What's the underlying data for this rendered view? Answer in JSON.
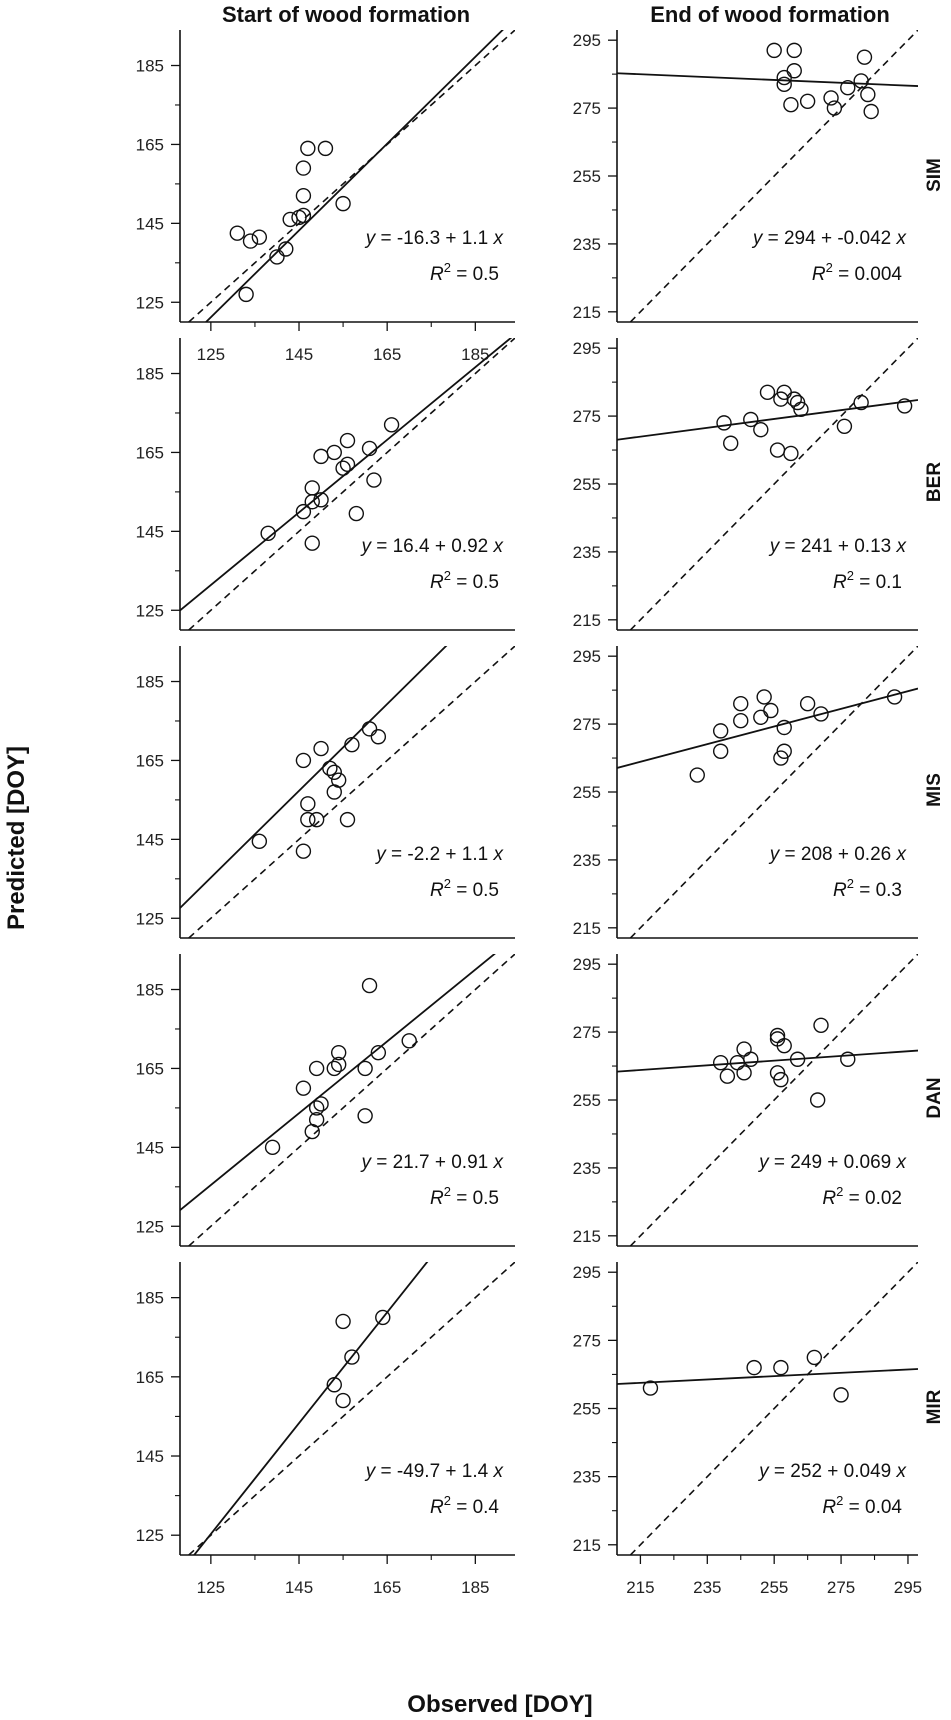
{
  "figure": {
    "column_titles": [
      "Start of wood formation",
      "End of wood formation"
    ],
    "xlabel": "Observed [DOY]",
    "ylabel": "Predicted [DOY]",
    "row_labels": [
      "SIM",
      "BER",
      "MIS",
      "DAN",
      "MIR"
    ],
    "colors": {
      "ink": "#111111",
      "background": "#ffffff"
    }
  },
  "chart_data": [
    {
      "type": "scatter",
      "column": "Start of wood formation",
      "site": "SIM",
      "xlim": [
        118,
        194
      ],
      "ylim": [
        120,
        194
      ],
      "xticks": [
        "125",
        "145",
        "165",
        "185"
      ],
      "yticks": [
        "125",
        "145",
        "165",
        "185"
      ],
      "fit": {
        "intercept": -16.3,
        "slope": 1.1
      },
      "equation": {
        "y": "y",
        "rhs": " = -16.3 + 1.1 ",
        "x": "x",
        "r": "R",
        "sup": "2",
        "r2": " = 0.5"
      },
      "points": [
        {
          "x": 131,
          "y": 142.5
        },
        {
          "x": 134,
          "y": 140.5
        },
        {
          "x": 136,
          "y": 141.5
        },
        {
          "x": 140,
          "y": 136.5
        },
        {
          "x": 142,
          "y": 138.5
        },
        {
          "x": 143,
          "y": 146
        },
        {
          "x": 145,
          "y": 146.5
        },
        {
          "x": 146,
          "y": 147
        },
        {
          "x": 146,
          "y": 152
        },
        {
          "x": 146,
          "y": 159
        },
        {
          "x": 147,
          "y": 164
        },
        {
          "x": 151,
          "y": 164
        },
        {
          "x": 155,
          "y": 150
        },
        {
          "x": 133,
          "y": 127
        }
      ]
    },
    {
      "type": "scatter",
      "column": "End of wood formation",
      "site": "SIM",
      "xlim": [
        208,
        298
      ],
      "ylim": [
        212,
        298
      ],
      "xticks": [],
      "yticks": [
        "215",
        "235",
        "255",
        "275",
        "295"
      ],
      "fit": {
        "intercept": 294,
        "slope": -0.042
      },
      "equation": {
        "y": "y",
        "rhs": " = 294 + -0.042 ",
        "x": "x",
        "r": "R",
        "sup": "2",
        "r2": " = 0.004"
      },
      "points": [
        {
          "x": 255,
          "y": 292
        },
        {
          "x": 261,
          "y": 292
        },
        {
          "x": 258,
          "y": 284
        },
        {
          "x": 258,
          "y": 282
        },
        {
          "x": 261,
          "y": 286
        },
        {
          "x": 260,
          "y": 276
        },
        {
          "x": 265,
          "y": 277
        },
        {
          "x": 272,
          "y": 278
        },
        {
          "x": 273,
          "y": 275
        },
        {
          "x": 277,
          "y": 281
        },
        {
          "x": 281,
          "y": 283
        },
        {
          "x": 282,
          "y": 290
        },
        {
          "x": 283,
          "y": 279
        },
        {
          "x": 284,
          "y": 274
        }
      ]
    },
    {
      "type": "scatter",
      "column": "Start of wood formation",
      "site": "BER",
      "xlim": [
        118,
        194
      ],
      "ylim": [
        120,
        194
      ],
      "xticks": [],
      "yticks": [
        "125",
        "145",
        "165",
        "185"
      ],
      "fit": {
        "intercept": 16.4,
        "slope": 0.92
      },
      "equation": {
        "y": "y",
        "rhs": " = 16.4 + 0.92 ",
        "x": "x",
        "r": "R",
        "sup": "2",
        "r2": " = 0.5"
      },
      "points": [
        {
          "x": 138,
          "y": 144.5
        },
        {
          "x": 146,
          "y": 150
        },
        {
          "x": 148,
          "y": 142
        },
        {
          "x": 148,
          "y": 152.5
        },
        {
          "x": 148,
          "y": 156
        },
        {
          "x": 150,
          "y": 153
        },
        {
          "x": 150,
          "y": 164
        },
        {
          "x": 153,
          "y": 165
        },
        {
          "x": 155,
          "y": 161
        },
        {
          "x": 156,
          "y": 162
        },
        {
          "x": 156,
          "y": 168
        },
        {
          "x": 158,
          "y": 149.5
        },
        {
          "x": 161,
          "y": 166
        },
        {
          "x": 162,
          "y": 158
        },
        {
          "x": 166,
          "y": 172
        }
      ]
    },
    {
      "type": "scatter",
      "column": "End of wood formation",
      "site": "BER",
      "xlim": [
        208,
        298
      ],
      "ylim": [
        212,
        298
      ],
      "xticks": [],
      "yticks": [
        "215",
        "235",
        "255",
        "275",
        "295"
      ],
      "fit": {
        "intercept": 241,
        "slope": 0.13
      },
      "equation": {
        "y": "y",
        "rhs": " = 241 + 0.13 ",
        "x": "x",
        "r": "R",
        "sup": "2",
        "r2": " = 0.1"
      },
      "points": [
        {
          "x": 240,
          "y": 273
        },
        {
          "x": 242,
          "y": 267
        },
        {
          "x": 248,
          "y": 274
        },
        {
          "x": 251,
          "y": 271
        },
        {
          "x": 253,
          "y": 282
        },
        {
          "x": 256,
          "y": 265
        },
        {
          "x": 257,
          "y": 280
        },
        {
          "x": 258,
          "y": 282
        },
        {
          "x": 260,
          "y": 264
        },
        {
          "x": 261,
          "y": 280
        },
        {
          "x": 262,
          "y": 279
        },
        {
          "x": 263,
          "y": 277
        },
        {
          "x": 276,
          "y": 272
        },
        {
          "x": 281,
          "y": 279
        },
        {
          "x": 294,
          "y": 278
        }
      ]
    },
    {
      "type": "scatter",
      "column": "Start of wood formation",
      "site": "MIS",
      "xlim": [
        118,
        194
      ],
      "ylim": [
        120,
        194
      ],
      "xticks": [],
      "yticks": [
        "125",
        "145",
        "165",
        "185"
      ],
      "fit": {
        "intercept": -2.2,
        "slope": 1.1
      },
      "equation": {
        "y": "y",
        "rhs": " = -2.2 + 1.1 ",
        "x": "x",
        "r": "R",
        "sup": "2",
        "r2": " = 0.5"
      },
      "points": [
        {
          "x": 136,
          "y": 144.5
        },
        {
          "x": 146,
          "y": 142
        },
        {
          "x": 146,
          "y": 165
        },
        {
          "x": 147,
          "y": 150
        },
        {
          "x": 147,
          "y": 154
        },
        {
          "x": 149,
          "y": 150
        },
        {
          "x": 150,
          "y": 168
        },
        {
          "x": 152,
          "y": 163
        },
        {
          "x": 153,
          "y": 157
        },
        {
          "x": 153,
          "y": 162
        },
        {
          "x": 154,
          "y": 160
        },
        {
          "x": 156,
          "y": 150
        },
        {
          "x": 157,
          "y": 169
        },
        {
          "x": 161,
          "y": 173
        },
        {
          "x": 163,
          "y": 171
        }
      ]
    },
    {
      "type": "scatter",
      "column": "End of wood formation",
      "site": "MIS",
      "xlim": [
        208,
        298
      ],
      "ylim": [
        212,
        298
      ],
      "xticks": [],
      "yticks": [
        "215",
        "235",
        "255",
        "275",
        "295"
      ],
      "fit": {
        "intercept": 208,
        "slope": 0.26
      },
      "equation": {
        "y": "y",
        "rhs": " = 208 + 0.26 ",
        "x": "x",
        "r": "R",
        "sup": "2",
        "r2": " = 0.3"
      },
      "points": [
        {
          "x": 232,
          "y": 260
        },
        {
          "x": 239,
          "y": 267
        },
        {
          "x": 239,
          "y": 273
        },
        {
          "x": 245,
          "y": 276
        },
        {
          "x": 245,
          "y": 281
        },
        {
          "x": 251,
          "y": 277
        },
        {
          "x": 252,
          "y": 283
        },
        {
          "x": 254,
          "y": 279
        },
        {
          "x": 257,
          "y": 265
        },
        {
          "x": 258,
          "y": 267
        },
        {
          "x": 258,
          "y": 274
        },
        {
          "x": 265,
          "y": 281
        },
        {
          "x": 269,
          "y": 278
        },
        {
          "x": 291,
          "y": 283
        }
      ]
    },
    {
      "type": "scatter",
      "column": "Start of wood formation",
      "site": "DAN",
      "xlim": [
        118,
        194
      ],
      "ylim": [
        120,
        194
      ],
      "xticks": [],
      "yticks": [
        "125",
        "145",
        "165",
        "185"
      ],
      "fit": {
        "intercept": 21.7,
        "slope": 0.91
      },
      "equation": {
        "y": "y",
        "rhs": " = 21.7 + 0.91 ",
        "x": "x",
        "r": "R",
        "sup": "2",
        "r2": " = 0.5"
      },
      "points": [
        {
          "x": 139,
          "y": 145
        },
        {
          "x": 146,
          "y": 160
        },
        {
          "x": 148,
          "y": 149
        },
        {
          "x": 149,
          "y": 152
        },
        {
          "x": 149,
          "y": 155
        },
        {
          "x": 149,
          "y": 165
        },
        {
          "x": 150,
          "y": 156
        },
        {
          "x": 153,
          "y": 165
        },
        {
          "x": 154,
          "y": 166
        },
        {
          "x": 154,
          "y": 169
        },
        {
          "x": 160,
          "y": 153
        },
        {
          "x": 160,
          "y": 165
        },
        {
          "x": 161,
          "y": 186
        },
        {
          "x": 163,
          "y": 169
        },
        {
          "x": 170,
          "y": 172
        }
      ]
    },
    {
      "type": "scatter",
      "column": "End of wood formation",
      "site": "DAN",
      "xlim": [
        208,
        298
      ],
      "ylim": [
        212,
        298
      ],
      "xticks": [],
      "yticks": [
        "215",
        "235",
        "255",
        "275",
        "295"
      ],
      "fit": {
        "intercept": 249,
        "slope": 0.069
      },
      "equation": {
        "y": "y",
        "rhs": " = 249 + 0.069 ",
        "x": "x",
        "r": "R",
        "sup": "2",
        "r2": " = 0.02"
      },
      "points": [
        {
          "x": 239,
          "y": 266
        },
        {
          "x": 241,
          "y": 262
        },
        {
          "x": 244,
          "y": 266
        },
        {
          "x": 246,
          "y": 263
        },
        {
          "x": 246,
          "y": 270
        },
        {
          "x": 248,
          "y": 267
        },
        {
          "x": 256,
          "y": 263
        },
        {
          "x": 256,
          "y": 273
        },
        {
          "x": 256,
          "y": 274
        },
        {
          "x": 257,
          "y": 261
        },
        {
          "x": 258,
          "y": 271
        },
        {
          "x": 262,
          "y": 267
        },
        {
          "x": 268,
          "y": 255
        },
        {
          "x": 269,
          "y": 277
        },
        {
          "x": 277,
          "y": 267
        }
      ]
    },
    {
      "type": "scatter",
      "column": "Start of wood formation",
      "site": "MIR",
      "xlim": [
        118,
        194
      ],
      "ylim": [
        120,
        194
      ],
      "xticks": [
        "125",
        "145",
        "165",
        "185"
      ],
      "yticks": [
        "125",
        "145",
        "165",
        "185"
      ],
      "fit": {
        "intercept": -49.7,
        "slope": 1.4
      },
      "equation": {
        "y": "y",
        "rhs": " = -49.7 + 1.4 ",
        "x": "x",
        "r": "R",
        "sup": "2",
        "r2": " = 0.4"
      },
      "points": [
        {
          "x": 153,
          "y": 163
        },
        {
          "x": 155,
          "y": 159
        },
        {
          "x": 155,
          "y": 179
        },
        {
          "x": 157,
          "y": 170
        },
        {
          "x": 164,
          "y": 180
        }
      ]
    },
    {
      "type": "scatter",
      "column": "End of wood formation",
      "site": "MIR",
      "xlim": [
        208,
        298
      ],
      "ylim": [
        212,
        298
      ],
      "xticks": [
        "215",
        "235",
        "255",
        "275",
        "295"
      ],
      "yticks": [
        "215",
        "235",
        "255",
        "275",
        "295"
      ],
      "fit": {
        "intercept": 252,
        "slope": 0.049
      },
      "equation": {
        "y": "y",
        "rhs": " = 252 + 0.049 ",
        "x": "x",
        "r": "R",
        "sup": "2",
        "r2": " = 0.04"
      },
      "points": [
        {
          "x": 218,
          "y": 261
        },
        {
          "x": 249,
          "y": 267
        },
        {
          "x": 257,
          "y": 267
        },
        {
          "x": 267,
          "y": 270
        },
        {
          "x": 275,
          "y": 259
        }
      ]
    }
  ]
}
